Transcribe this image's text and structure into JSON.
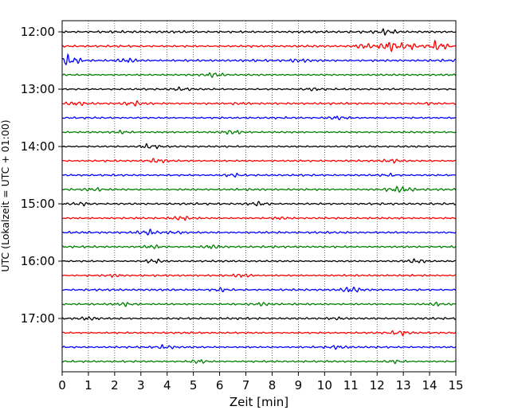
{
  "chart_data": {
    "type": "line",
    "title": "",
    "xlabel": "Zeit  [min]",
    "ylabel": "UTC (Lokalzeit = UTC + 01:00)",
    "xlim": [
      0,
      15
    ],
    "x_ticks": [
      0,
      1,
      2,
      3,
      4,
      5,
      6,
      7,
      8,
      9,
      10,
      11,
      12,
      13,
      14,
      15
    ],
    "x_tick_labels": [
      "0",
      "1",
      "2",
      "3",
      "4",
      "5",
      "6",
      "7",
      "8",
      "9",
      "10",
      "11",
      "12",
      "13",
      "14",
      "15"
    ],
    "y_tick_labels": [
      "12:00",
      "13:00",
      "14:00",
      "15:00",
      "16:00",
      "17:00"
    ],
    "grid": "vertical-dotted",
    "legend": "none",
    "trace_minutes_per_row": 15,
    "trace_start": "12:00",
    "trace_end": "17:45",
    "trace_colors": [
      "#000000",
      "#ff0000",
      "#0000ff",
      "#008000"
    ],
    "series": [
      {
        "start": "12:00",
        "color": "#000000",
        "amplitude": 0.9,
        "bursts": [
          [
            12.4,
            2.0
          ]
        ]
      },
      {
        "start": "12:15",
        "color": "#ff0000",
        "amplitude": 0.8,
        "bursts": [
          [
            11.5,
            2.0
          ],
          [
            12.5,
            5.0
          ],
          [
            13.2,
            4.0
          ],
          [
            14.3,
            4.0
          ]
        ]
      },
      {
        "start": "12:30",
        "color": "#0000ff",
        "amplitude": 0.9,
        "bursts": [
          [
            0.3,
            3.5
          ],
          [
            2.5,
            1.5
          ],
          [
            9.0,
            1.2
          ]
        ]
      },
      {
        "start": "12:45",
        "color": "#008000",
        "amplitude": 0.7,
        "bursts": [
          [
            5.8,
            1.6
          ]
        ]
      },
      {
        "start": "13:00",
        "color": "#000000",
        "amplitude": 0.7,
        "bursts": [
          [
            4.5,
            1.2
          ],
          [
            9.5,
            1.2
          ]
        ]
      },
      {
        "start": "13:15",
        "color": "#ff0000",
        "amplitude": 0.8,
        "bursts": [
          [
            0.5,
            1.2
          ],
          [
            2.7,
            1.5
          ],
          [
            6.8,
            1.2
          ],
          [
            14.0,
            1.2
          ]
        ]
      },
      {
        "start": "13:30",
        "color": "#0000ff",
        "amplitude": 0.7,
        "bursts": [
          [
            10.5,
            1.2
          ]
        ]
      },
      {
        "start": "13:45",
        "color": "#008000",
        "amplitude": 0.7,
        "bursts": [
          [
            2.3,
            1.8
          ],
          [
            6.5,
            1.3
          ]
        ]
      },
      {
        "start": "14:00",
        "color": "#000000",
        "amplitude": 0.7,
        "bursts": [
          [
            3.3,
            1.8
          ]
        ]
      },
      {
        "start": "14:15",
        "color": "#ff0000",
        "amplitude": 0.7,
        "bursts": [
          [
            3.6,
            1.5
          ],
          [
            12.6,
            1.8
          ]
        ]
      },
      {
        "start": "14:30",
        "color": "#0000ff",
        "amplitude": 0.7,
        "bursts": [
          [
            6.5,
            1.2
          ],
          [
            12.5,
            1.4
          ]
        ]
      },
      {
        "start": "14:45",
        "color": "#008000",
        "amplitude": 0.8,
        "bursts": [
          [
            1.2,
            1.5
          ],
          [
            12.7,
            2.0
          ],
          [
            13.1,
            1.8
          ]
        ]
      },
      {
        "start": "15:00",
        "color": "#000000",
        "amplitude": 0.8,
        "bursts": [
          [
            0.8,
            1.5
          ],
          [
            7.5,
            1.3
          ]
        ]
      },
      {
        "start": "15:15",
        "color": "#ff0000",
        "amplitude": 0.7,
        "bursts": [
          [
            4.5,
            1.5
          ],
          [
            8.4,
            1.3
          ]
        ]
      },
      {
        "start": "15:30",
        "color": "#0000ff",
        "amplitude": 0.8,
        "bursts": [
          [
            3.3,
            1.8
          ],
          [
            4.3,
            1.3
          ]
        ]
      },
      {
        "start": "15:45",
        "color": "#008000",
        "amplitude": 0.8,
        "bursts": [
          [
            3.5,
            1.3
          ],
          [
            5.7,
            1.2
          ]
        ]
      },
      {
        "start": "16:00",
        "color": "#000000",
        "amplitude": 0.7,
        "bursts": [
          [
            3.5,
            1.5
          ],
          [
            13.5,
            1.2
          ]
        ]
      },
      {
        "start": "16:15",
        "color": "#ff0000",
        "amplitude": 0.7,
        "bursts": [
          [
            6.9,
            1.8
          ],
          [
            2.0,
            1.2
          ]
        ]
      },
      {
        "start": "16:30",
        "color": "#0000ff",
        "amplitude": 0.8,
        "bursts": [
          [
            6.0,
            1.5
          ],
          [
            11.0,
            1.8
          ]
        ]
      },
      {
        "start": "16:45",
        "color": "#008000",
        "amplitude": 0.7,
        "bursts": [
          [
            2.5,
            1.4
          ],
          [
            7.6,
            1.3
          ],
          [
            14.3,
            1.2
          ]
        ]
      },
      {
        "start": "17:00",
        "color": "#000000",
        "amplitude": 0.8,
        "bursts": [
          [
            1.0,
            1.6
          ],
          [
            10.5,
            1.3
          ]
        ]
      },
      {
        "start": "17:15",
        "color": "#ff0000",
        "amplitude": 0.7,
        "bursts": [
          [
            12.9,
            1.8
          ]
        ]
      },
      {
        "start": "17:30",
        "color": "#0000ff",
        "amplitude": 0.7,
        "bursts": [
          [
            3.9,
            1.5
          ],
          [
            10.5,
            1.2
          ]
        ]
      },
      {
        "start": "17:45",
        "color": "#008000",
        "amplitude": 0.7,
        "bursts": [
          [
            5.2,
            1.5
          ],
          [
            12.7,
            1.2
          ]
        ]
      }
    ]
  }
}
